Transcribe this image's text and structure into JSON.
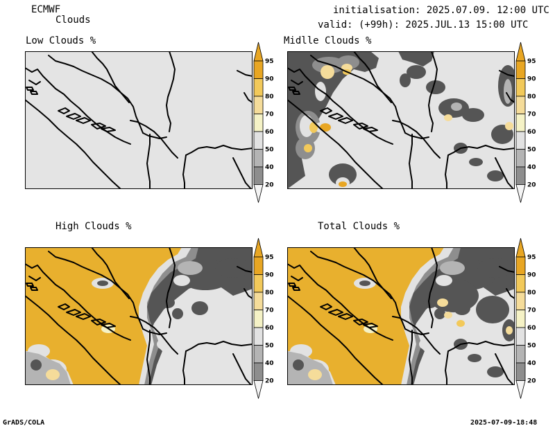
{
  "header": {
    "model": "ECMWF",
    "product": "Clouds",
    "init": "initialisation: 2025.07.09. 12:00 UTC",
    "valid": "valid: (+99h): 2025.JUL.13 15:00 UTC"
  },
  "panels": [
    {
      "id": "low",
      "title": "Low Clouds %"
    },
    {
      "id": "mid",
      "title": "Midlle Clouds %"
    },
    {
      "id": "high",
      "title": "High Clouds %"
    },
    {
      "id": "total",
      "title": "Total Clouds %"
    }
  ],
  "colorbar": {
    "labels": [
      "95",
      "90",
      "80",
      "70",
      "60",
      "50",
      "40",
      "20"
    ],
    "colors": {
      "c95": "#e8a623",
      "c90": "#f2c95a",
      "c80": "#f5dc9a",
      "c70": "#f5f2c6",
      "c60": "#e2e2e2",
      "c50": "#b4b4b4",
      "c40": "#8e8e8e",
      "c20": "#555555",
      "under": "#f4f4f4",
      "background": "#e4e4e4",
      "cloud_high": "#e8b02e",
      "border": "#000000"
    }
  },
  "footer": {
    "left": "GrADS/COLA",
    "right": "2025-07-09-18:48"
  }
}
